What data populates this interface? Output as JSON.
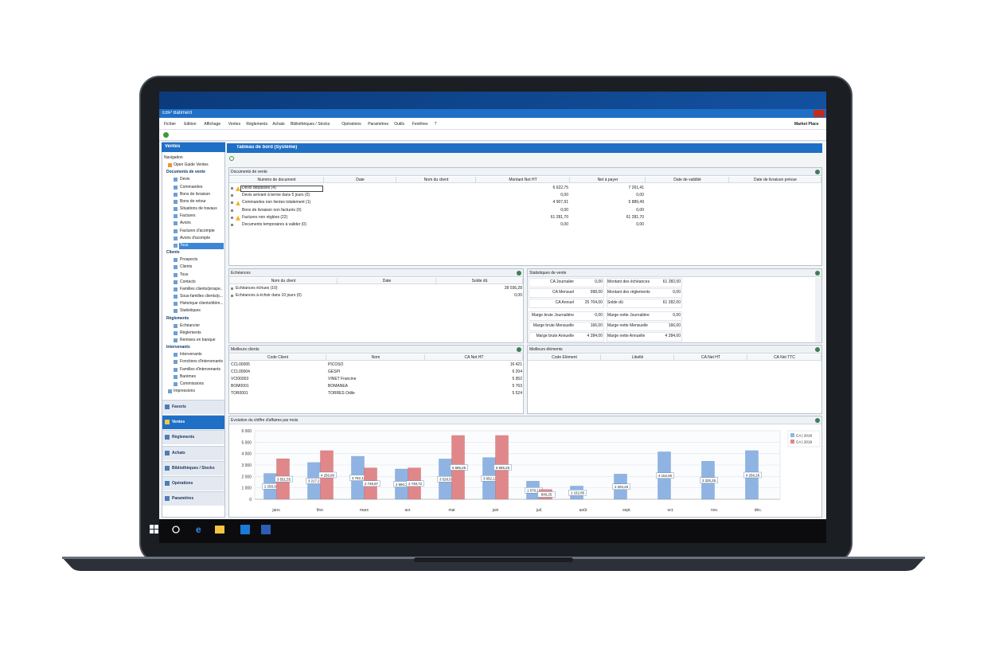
{
  "window": {
    "title": "EBP Bâtiment",
    "menu": [
      "Fichier",
      "Édition",
      "Affichage",
      "Ventes",
      "Règlements",
      "Achats",
      "Bibliothèques / Stocks",
      "Opérations",
      "Paramètres",
      "Outils",
      "Fenêtres",
      "?"
    ],
    "marketplace": "Market Place"
  },
  "sidebar": {
    "header": "Ventes",
    "navigation": "Navigation",
    "guide": "Open Guide Ventes",
    "groups": [
      {
        "label": "Documents de vente",
        "items": [
          "Devis",
          "Commandes",
          "Bons de livraison",
          "Bons de retour",
          "Situations de travaux",
          "Factures",
          "Avoirs",
          "Factures d'acompte",
          "Avoirs d'acompte",
          "Tous"
        ]
      },
      {
        "label": "Clients",
        "items": [
          "Prospects",
          "Clients",
          "Tous",
          "Contacts",
          "Familles clients/prospe...",
          "Sous-familles clients/p...",
          "Historique clients/élém...",
          "Statistiques"
        ]
      },
      {
        "label": "Règlements",
        "items": [
          "Échéancier",
          "Règlements",
          "Remises en banque"
        ]
      },
      {
        "label": "Intervenants",
        "items": [
          "Intervenants",
          "Fonctions d'intervenants",
          "Familles d'intervenants",
          "Barèmes",
          "Commissions"
        ]
      }
    ],
    "footer_link": "Impressions",
    "modules": [
      "Favoris",
      "Ventes",
      "Règlements",
      "Achats",
      "Bibliothèques / Stocks",
      "Opérations",
      "Paramètres"
    ]
  },
  "dashboard": {
    "title": "Tableau de bord (Système)",
    "documents": {
      "title": "Documents de vente",
      "columns": [
        "Numéro de document",
        "Date",
        "Nom du client",
        "Montant Net HT",
        "Net à payer",
        "Date de validité",
        "Date de livraison prévue"
      ],
      "rows": [
        {
          "label": "Devis dépassés (4)",
          "amount": "6 622,75",
          "net": "7 261,41"
        },
        {
          "label": "Devis arrivant à terme dans 5 jours (0)",
          "amount": "0,00",
          "net": "0,00"
        },
        {
          "label": "Commandes non livrées totalement (1)",
          "amount": "4 907,91",
          "net": "5 889,49"
        },
        {
          "label": "Bons de livraison non facturés (0)",
          "amount": "0,00",
          "net": "0,00"
        },
        {
          "label": "Factures non réglées (22)",
          "amount": "61 281,70",
          "net": "61 281,70"
        },
        {
          "label": "Documents temporaires à valider (0)",
          "amount": "0,00",
          "net": "0,00"
        }
      ]
    },
    "echeances": {
      "title": "Échéances",
      "columns": [
        "Nom du client",
        "Date",
        "Solde dû"
      ],
      "rows": [
        {
          "label": "Échéances échues (10)",
          "amount": "28 036,28"
        },
        {
          "label": "Échéances à échoir dans 10 jours (0)",
          "amount": "0,00"
        }
      ]
    },
    "statistiques": {
      "title": "Statistiques de vente",
      "left": [
        [
          "CA Journalier",
          "0,00"
        ],
        [
          "CA Mensuel",
          "998,00"
        ],
        [
          "CA Annuel",
          "25 704,00"
        ],
        [
          "Marge brute Journalière",
          "0,00"
        ],
        [
          "Marge brute Mensuelle",
          "166,00"
        ],
        [
          "Marge brute Annuelle",
          "4 284,00"
        ]
      ],
      "right": [
        [
          "Montant des échéances",
          "61 282,00"
        ],
        [
          "Montant des règlements",
          "0,00"
        ],
        [
          "Solde dû",
          "61 282,00"
        ],
        [
          "Marge nette Journalière",
          "0,00"
        ],
        [
          "Marge nette Mensuelle",
          "166,00"
        ],
        [
          "Marge nette Annuelle",
          "4 284,00"
        ]
      ]
    },
    "meilleurs_clients": {
      "title": "Meilleurs clients",
      "columns": [
        "Code Client",
        "Nom",
        "CA Net HT"
      ],
      "rows": [
        [
          "CCL00005",
          "PICOSO",
          "16 421"
        ],
        [
          "CCL00004",
          "GESPI",
          "6 204"
        ],
        [
          "VCI00003",
          "VINET Francine",
          "5 952"
        ],
        [
          "BOM0001",
          "BOMANEA",
          "5 763"
        ],
        [
          "TOR0001",
          "TORRES Odile",
          "5 524"
        ]
      ]
    },
    "meilleurs_elements": {
      "title": "Meilleurs éléments",
      "columns": [
        "Code Élément",
        "Libellé",
        "CA Net HT",
        "CA Net TTC"
      ]
    }
  },
  "chart_data": {
    "type": "bar",
    "title": "Évolution du chiffre d'affaires par mois",
    "categories": [
      "janv.",
      "févr.",
      "mars",
      "avr.",
      "mai",
      "juin",
      "juil.",
      "août",
      "sept.",
      "oct.",
      "nov.",
      "déc."
    ],
    "series": [
      {
        "name": "CA | 2018",
        "color": "#8fb4e3",
        "values": [
          2258.38,
          3217.21,
          3762.12,
          2650.33,
          3528.54,
          3652.12,
          1578.12,
          1152.85,
          2203.25,
          4152.0,
          3325.25,
          4258.28
        ],
        "value_labels": [
          "2 258,38",
          "3 217,21",
          "3 762,12",
          "2 650,33",
          "3 528,54",
          "3 652,12",
          "1 578,12",
          "1 152,85",
          "2 203,25",
          "4 152,00",
          "3 325,25",
          "4 258,28"
        ]
      },
      {
        "name": "CA | 2019",
        "color": "#e0878a",
        "values": [
          3551.55,
          4256.8,
          2748.87,
          2748.72,
          5585.25,
          5585.25,
          849.25,
          null,
          null,
          null,
          null,
          null
        ],
        "value_labels": [
          "3 551,55",
          "4 256,80",
          "2 748,87",
          "2 748,72",
          "5 585,25",
          "5 585,25",
          "849,25",
          null,
          null,
          null,
          null,
          null
        ]
      }
    ],
    "ylim": [
      0,
      6000
    ],
    "yticks": [
      0,
      {
        "value": 1000,
        "label": "1 000"
      },
      {
        "value": 2000,
        "label": "2 000"
      },
      {
        "value": 3000,
        "label": "3 000"
      },
      {
        "value": 4000,
        "label": "4 000"
      },
      {
        "value": 5000,
        "label": "5 000"
      },
      {
        "value": 6000,
        "label": "6 000"
      }
    ],
    "grid": true,
    "legend": "top-right"
  }
}
